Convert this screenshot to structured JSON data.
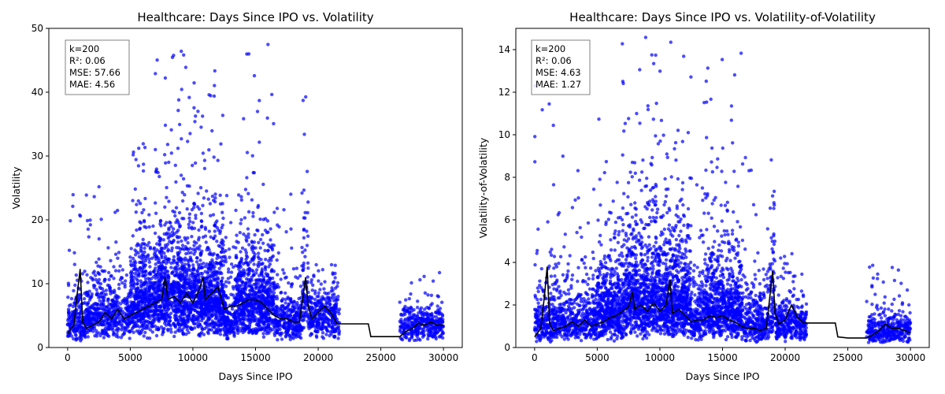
{
  "chart_data": [
    {
      "type": "scatter",
      "title": "Healthcare: Days Since IPO vs. Volatility",
      "xlabel": "Days Since IPO",
      "ylabel": "Volatility",
      "xlim": [
        -1500,
        31500
      ],
      "ylim": [
        0,
        50
      ],
      "xticks": [
        "0",
        "5000",
        "10000",
        "15000",
        "20000",
        "25000",
        "30000"
      ],
      "yticks": [
        "0",
        "10",
        "20",
        "30",
        "40",
        "50"
      ],
      "grid": false,
      "stats_box": [
        "k=200",
        "R²: 0.06",
        "MSE: 57.66",
        "MAE: 4.56"
      ],
      "colors": {
        "points": "#0000ff",
        "smooth_line": "#000000"
      },
      "series": [
        {
          "kind": "scatter-cloud",
          "clusters": [
            {
              "x": [
                0,
                1500
              ],
              "base": 2.5,
              "spread": 3.5,
              "max": 30,
              "n": 220
            },
            {
              "x": [
                1500,
                5000
              ],
              "base": 3.5,
              "spread": 4,
              "max": 27,
              "n": 500
            },
            {
              "x": [
                5000,
                7000
              ],
              "base": 4.5,
              "spread": 6,
              "max": 35,
              "n": 520
            },
            {
              "x": [
                7000,
                10500
              ],
              "base": 5.5,
              "spread": 7,
              "max": 50,
              "n": 1000
            },
            {
              "x": [
                10500,
                12500
              ],
              "base": 5,
              "spread": 6.5,
              "max": 44,
              "n": 600
            },
            {
              "x": [
                12500,
                13400
              ],
              "base": 3,
              "spread": 4,
              "max": 25,
              "n": 150
            },
            {
              "x": [
                13400,
                16500
              ],
              "base": 5,
              "spread": 5.5,
              "max": 49,
              "n": 800
            },
            {
              "x": [
                16500,
                18700
              ],
              "base": 3,
              "spread": 3.5,
              "max": 25,
              "n": 320
            },
            {
              "x": [
                18700,
                19200
              ],
              "base": 5,
              "spread": 9,
              "max": 44,
              "n": 80
            },
            {
              "x": [
                19200,
                21700
              ],
              "base": 4,
              "spread": 2.5,
              "max": 13,
              "n": 330
            },
            {
              "x": [
                26500,
                30000
              ],
              "base": 3,
              "spread": 1.5,
              "max": 12.5,
              "n": 360
            }
          ]
        },
        {
          "kind": "smooth-line",
          "x": [
            0,
            500,
            800,
            1000,
            1200,
            1500,
            2000,
            2500,
            3000,
            3500,
            4000,
            4500,
            5000,
            5500,
            6000,
            6500,
            7000,
            7500,
            7800,
            8000,
            8500,
            9000,
            9500,
            10000,
            10500,
            10800,
            11000,
            11500,
            12000,
            12500,
            13000,
            13500,
            14000,
            14500,
            15000,
            15500,
            16000,
            16500,
            17000,
            17500,
            18000,
            18500,
            19000,
            19200,
            19500,
            20000,
            20500,
            21000,
            21500,
            22000,
            23000,
            24000,
            24200,
            25000,
            26000,
            26500,
            27000,
            27500,
            28000,
            28500,
            29000,
            29500,
            30000
          ],
          "y": [
            2.2,
            3.5,
            9,
            12.3,
            4,
            3,
            3.5,
            4,
            5.5,
            4.5,
            6,
            4.5,
            5,
            5.5,
            6,
            6.5,
            7,
            7.5,
            11,
            7.5,
            8,
            7,
            8.5,
            7,
            9,
            11,
            7.5,
            8.5,
            9.5,
            6,
            6.5,
            6.5,
            7,
            7.5,
            7.5,
            7,
            6,
            5,
            4.5,
            4.5,
            4,
            4,
            11,
            6.5,
            4.5,
            5.5,
            6.5,
            5.5,
            3.7,
            3.7,
            3.7,
            3.7,
            1.7,
            1.7,
            1.7,
            1.7,
            2.5,
            3,
            3.8,
            3.5,
            4,
            3.5,
            3.5
          ]
        }
      ]
    },
    {
      "type": "scatter",
      "title": "Healthcare: Days Since IPO vs. Volatility-of-Volatility",
      "xlabel": "Days Since IPO",
      "ylabel": "Volatility-of-Volatility",
      "xlim": [
        -1500,
        31500
      ],
      "ylim": [
        0,
        15
      ],
      "xticks": [
        "0",
        "5000",
        "10000",
        "15000",
        "20000",
        "25000",
        "30000"
      ],
      "yticks": [
        "0",
        "2",
        "4",
        "6",
        "8",
        "10",
        "12",
        "14"
      ],
      "grid": false,
      "stats_box": [
        "k=200",
        "R²: 0.06",
        "MSE: 4.63",
        "MAE: 1.27"
      ],
      "colors": {
        "points": "#0000ff",
        "smooth_line": "#000000"
      },
      "series": [
        {
          "kind": "scatter-cloud",
          "clusters": [
            {
              "x": [
                0,
                1500
              ],
              "base": 0.6,
              "spread": 1.3,
              "max": 13,
              "n": 220
            },
            {
              "x": [
                1500,
                5000
              ],
              "base": 0.8,
              "spread": 1.2,
              "max": 9,
              "n": 500
            },
            {
              "x": [
                5000,
                7000
              ],
              "base": 1,
              "spread": 1.8,
              "max": 13,
              "n": 520
            },
            {
              "x": [
                7000,
                10500
              ],
              "base": 1.3,
              "spread": 2.5,
              "max": 15,
              "n": 1000
            },
            {
              "x": [
                10500,
                12500
              ],
              "base": 1.1,
              "spread": 2.2,
              "max": 15,
              "n": 600
            },
            {
              "x": [
                12500,
                13400
              ],
              "base": 0.7,
              "spread": 1.2,
              "max": 9,
              "n": 150
            },
            {
              "x": [
                13400,
                16500
              ],
              "base": 1.1,
              "spread": 1.8,
              "max": 14,
              "n": 800
            },
            {
              "x": [
                16500,
                18700
              ],
              "base": 0.7,
              "spread": 1,
              "max": 9,
              "n": 320
            },
            {
              "x": [
                18700,
                19200
              ],
              "base": 1.2,
              "spread": 3,
              "max": 15,
              "n": 80
            },
            {
              "x": [
                19200,
                21700
              ],
              "base": 0.8,
              "spread": 0.8,
              "max": 4.5,
              "n": 330
            },
            {
              "x": [
                26500,
                30000
              ],
              "base": 0.6,
              "spread": 0.5,
              "max": 4,
              "n": 360
            }
          ]
        },
        {
          "kind": "smooth-line",
          "x": [
            0,
            500,
            800,
            1000,
            1200,
            1500,
            2000,
            2500,
            3000,
            3500,
            4000,
            4500,
            5000,
            5500,
            6000,
            6500,
            7000,
            7500,
            7800,
            8000,
            8500,
            9000,
            9500,
            10000,
            10500,
            10800,
            11000,
            11500,
            12000,
            12500,
            13000,
            13500,
            14000,
            14500,
            15000,
            15500,
            16000,
            16500,
            17000,
            17500,
            18000,
            18500,
            19000,
            19200,
            19500,
            20000,
            20500,
            21000,
            21500,
            22000,
            23000,
            24000,
            24200,
            25000,
            26000,
            26500,
            27000,
            27500,
            28000,
            28500,
            29000,
            29500,
            30000
          ],
          "y": [
            0.5,
            0.9,
            2.5,
            3.8,
            1.1,
            0.8,
            0.9,
            1,
            1.2,
            1,
            1.3,
            1,
            1.1,
            1.2,
            1.4,
            1.5,
            1.7,
            1.9,
            2.6,
            1.8,
            2,
            1.7,
            2.1,
            1.7,
            2,
            3.2,
            1.6,
            1.8,
            1.5,
            1.2,
            1.3,
            1.3,
            1.5,
            1.4,
            1.5,
            1.3,
            1.2,
            1,
            0.9,
            0.9,
            0.8,
            0.9,
            3.6,
            1.6,
            1.1,
            1.3,
            2,
            1.4,
            1.15,
            1.15,
            1.15,
            1.15,
            0.5,
            0.45,
            0.45,
            0.45,
            0.6,
            0.8,
            1.1,
            0.9,
            0.9,
            0.8,
            0.7
          ]
        }
      ]
    }
  ]
}
